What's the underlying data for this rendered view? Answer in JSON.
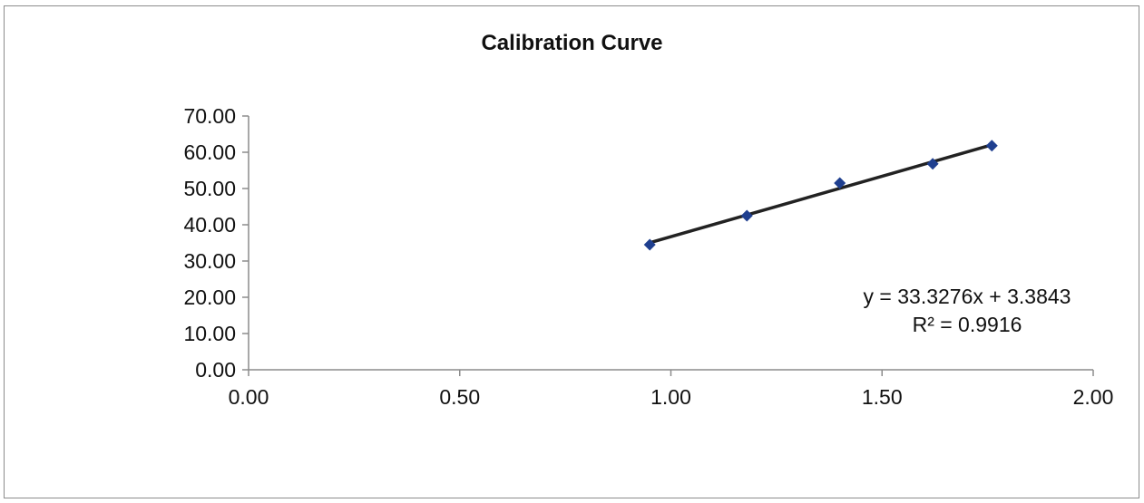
{
  "chart_data": {
    "type": "scatter",
    "title": "Calibration Curve",
    "xlabel": "",
    "ylabel": "",
    "xlim": [
      0,
      2
    ],
    "ylim": [
      0,
      70
    ],
    "x_ticks": [
      "0.00",
      "0.50",
      "1.00",
      "1.50",
      "2.00"
    ],
    "y_ticks": [
      "0.00",
      "10.00",
      "20.00",
      "30.00",
      "40.00",
      "50.00",
      "60.00",
      "70.00"
    ],
    "series": [
      {
        "points": [
          {
            "x": 0.95,
            "y": 34.5
          },
          {
            "x": 1.18,
            "y": 42.5
          },
          {
            "x": 1.4,
            "y": 51.5
          },
          {
            "x": 1.62,
            "y": 56.8
          },
          {
            "x": 1.76,
            "y": 61.8
          }
        ],
        "marker_color": "#1f3f8f"
      }
    ],
    "trendline": {
      "slope": 33.3276,
      "intercept": 3.3843,
      "x_range": [
        0.95,
        1.76
      ],
      "color": "#222222",
      "equation": "y = 33.3276x + 3.3843",
      "r_squared": "R² = 0.9916"
    },
    "grid": false,
    "legend": "none"
  }
}
